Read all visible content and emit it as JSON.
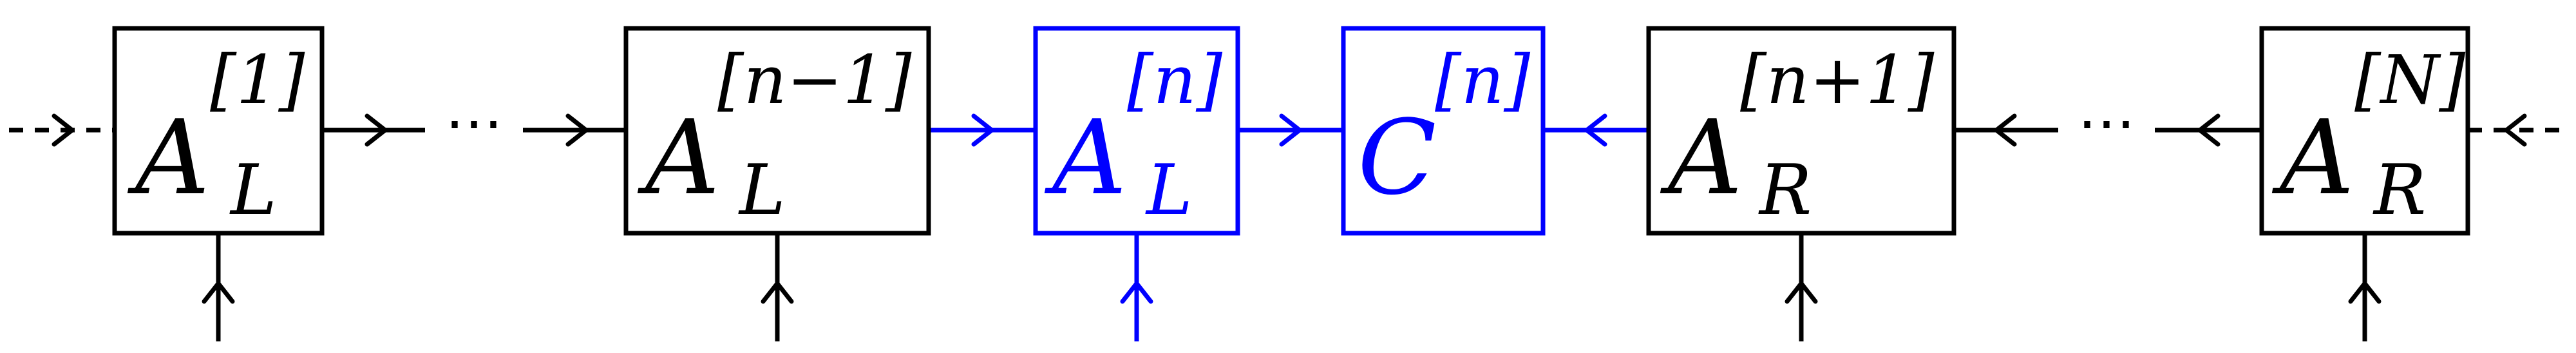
{
  "colors": {
    "black": "#000000",
    "highlight": "#0000ff"
  },
  "boxes": [
    {
      "letter": "A",
      "sub": "L",
      "sup": "[1]"
    },
    {
      "letter": "A",
      "sub": "L",
      "sup": "[n−1]"
    },
    {
      "letter": "A",
      "sub": "L",
      "sup": "[n]"
    },
    {
      "letter": "C",
      "sub": "",
      "sup": "[n]"
    },
    {
      "letter": "A",
      "sub": "R",
      "sup": "[n+1]"
    },
    {
      "letter": "A",
      "sub": "R",
      "sup": "[N]"
    }
  ],
  "ellipsis": [
    "⋯",
    "⋯"
  ]
}
